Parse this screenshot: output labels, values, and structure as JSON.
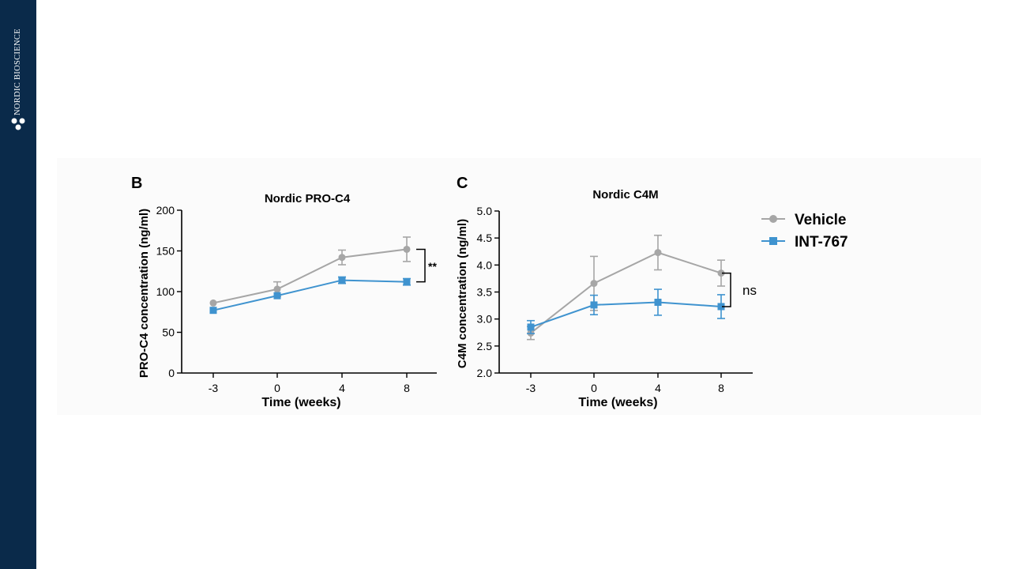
{
  "brand": {
    "name": "NORDIC BIOSCIENCE"
  },
  "colors": {
    "sidebar": "#0a2a4a",
    "vehicle": "#a6a6a6",
    "int767": "#3f93cf"
  },
  "legend": {
    "items": [
      "Vehicle",
      "INT-767"
    ]
  },
  "chart_data": [
    {
      "type": "line",
      "panel_label": "B",
      "title": "Nordic PRO-C4",
      "xlabel": "Time (weeks)",
      "ylabel": "PRO-C4 concentration (ng/ml)",
      "categories": [
        "-3",
        "0",
        "4",
        "8"
      ],
      "ylim": [
        0,
        200
      ],
      "yticks": [
        "0",
        "50",
        "100",
        "150",
        "200"
      ],
      "series": [
        {
          "name": "Vehicle",
          "marker": "circle",
          "values": [
            86,
            103,
            142,
            152
          ],
          "errors": [
            0,
            9,
            9,
            15
          ]
        },
        {
          "name": "INT-767",
          "marker": "square",
          "values": [
            77,
            95,
            114,
            112
          ],
          "errors": [
            0,
            0,
            4,
            4
          ]
        }
      ],
      "significance": "**"
    },
    {
      "type": "line",
      "panel_label": "C",
      "title": "Nordic C4M",
      "xlabel": "Time (weeks)",
      "ylabel": "C4M concentration (ng/ml)",
      "categories": [
        "-3",
        "0",
        "4",
        "8"
      ],
      "ylim": [
        2.0,
        5.0
      ],
      "yticks": [
        "2.0",
        "2.5",
        "3.0",
        "3.5",
        "4.0",
        "4.5",
        "5.0"
      ],
      "series": [
        {
          "name": "Vehicle",
          "marker": "circle",
          "values": [
            2.74,
            3.66,
            4.23,
            3.85
          ],
          "errors": [
            0.12,
            0.5,
            0.32,
            0.24
          ]
        },
        {
          "name": "INT-767",
          "marker": "square",
          "values": [
            2.85,
            3.26,
            3.31,
            3.23
          ],
          "errors": [
            0.12,
            0.18,
            0.24,
            0.22
          ]
        }
      ],
      "significance": "ns"
    }
  ]
}
